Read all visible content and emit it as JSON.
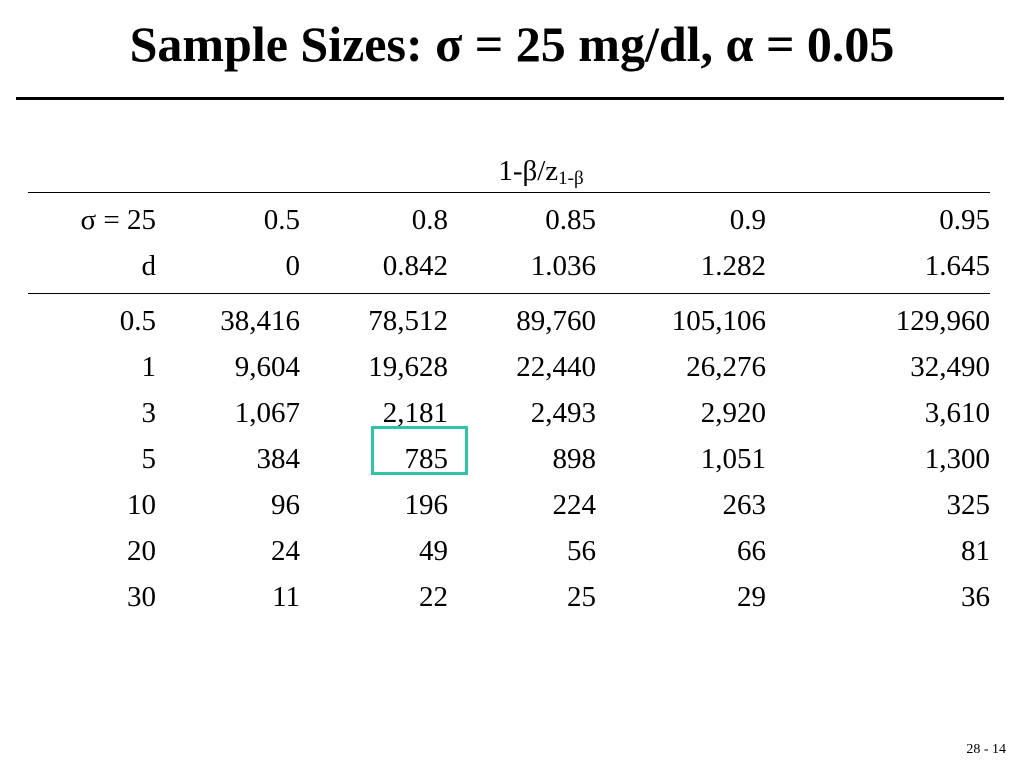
{
  "slide": {
    "title": "Sample Sizes: σ = 25 mg/dl, α = 0.05",
    "page_number": "28 - 14"
  },
  "table": {
    "group_header": "1-β/z",
    "group_header_sub": "1-β",
    "header_rows": [
      [
        "σ = 25",
        "0.5",
        "0.8",
        "0.85",
        "0.9",
        "0.95"
      ],
      [
        "d",
        "0",
        "0.842",
        "1.036",
        "1.282",
        "1.645"
      ]
    ],
    "rows": [
      [
        "0.5",
        "38,416",
        "78,512",
        "89,760",
        "105,106",
        "129,960"
      ],
      [
        "1",
        "9,604",
        "19,628",
        "22,440",
        "26,276",
        "32,490"
      ],
      [
        "3",
        "1,067",
        "2,181",
        "2,493",
        "2,920",
        "3,610"
      ],
      [
        "5",
        "384",
        "785",
        "898",
        "1,051",
        "1,300"
      ],
      [
        "10",
        "96",
        "196",
        "224",
        "263",
        "325"
      ],
      [
        "20",
        "24",
        "49",
        "56",
        "66",
        "81"
      ],
      [
        "30",
        "11",
        "22",
        "25",
        "29",
        "36"
      ]
    ],
    "highlight_color": "#2ec4a6",
    "highlighted_cell": "785"
  }
}
